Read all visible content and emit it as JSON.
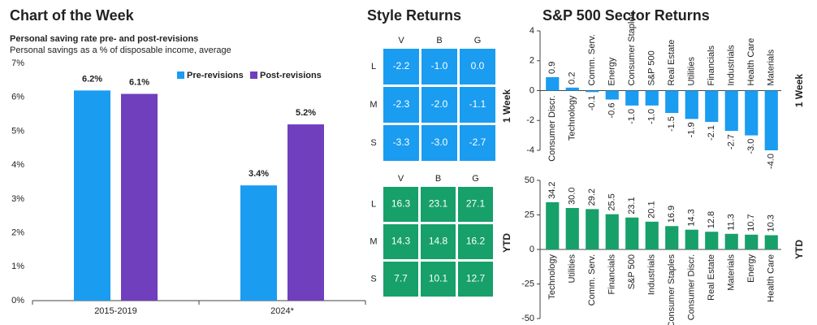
{
  "chart_data": [
    {
      "type": "bar",
      "title": "Chart of the Week",
      "subtitle": "Personal saving rate pre- and post-revisions",
      "ylabel": "Personal savings as a % of disposable income, average",
      "categories": [
        "2015-2019",
        "2024*"
      ],
      "series": [
        {
          "name": "Pre-revisions",
          "color": "#1a9cf0",
          "values": [
            6.2,
            3.4
          ],
          "value_labels": [
            "6.2%",
            "3.4%"
          ]
        },
        {
          "name": "Post-revisions",
          "color": "#6f3fbd",
          "values": [
            6.1,
            5.2
          ],
          "value_labels": [
            "6.1%",
            "5.2%"
          ]
        }
      ],
      "ylim": [
        0,
        7
      ],
      "yticks": [
        {
          "value": 0,
          "label": "0%"
        },
        {
          "value": 1,
          "label": "1%"
        },
        {
          "value": 2,
          "label": "2%"
        },
        {
          "value": 3,
          "label": "3%"
        },
        {
          "value": 4,
          "label": "4%"
        },
        {
          "value": 5,
          "label": "5%"
        },
        {
          "value": 6,
          "label": "6%"
        },
        {
          "value": 7,
          "label": "7%"
        }
      ]
    },
    {
      "type": "heatmap",
      "title": "Style Returns",
      "label": "1 Week",
      "columns": [
        "V",
        "B",
        "G"
      ],
      "rows": [
        "L",
        "M",
        "S"
      ],
      "values": [
        [
          -2.2,
          -1.0,
          0.0
        ],
        [
          -2.3,
          -2.0,
          -1.1
        ],
        [
          -3.3,
          -3.0,
          -2.7
        ]
      ],
      "value_labels": [
        [
          "-2.2",
          "-1.0",
          "0.0"
        ],
        [
          "-2.3",
          "-2.0",
          "-1.1"
        ],
        [
          "-3.3",
          "-3.0",
          "-2.7"
        ]
      ],
      "color": "#1a9cf0"
    },
    {
      "type": "heatmap",
      "label": "YTD",
      "columns": [
        "V",
        "B",
        "G"
      ],
      "rows": [
        "L",
        "M",
        "S"
      ],
      "values": [
        [
          16.3,
          23.1,
          27.1
        ],
        [
          14.3,
          14.8,
          16.2
        ],
        [
          7.7,
          10.1,
          12.7
        ]
      ],
      "color": "#17a06a"
    },
    {
      "type": "bar",
      "title": "S&P 500 Sector Returns",
      "ylabel": "1 Week",
      "categories": [
        "Consumer Discr.",
        "Technology",
        "Comm. Serv.",
        "Energy",
        "Consumer Staples",
        "S&P 500",
        "Real Estate",
        "Utilities",
        "Financials",
        "Industrials",
        "Health Care",
        "Materials"
      ],
      "values": [
        0.9,
        0.2,
        -0.1,
        -0.6,
        -1.0,
        -1.0,
        -1.5,
        -1.9,
        -2.1,
        -2.7,
        -3.0,
        -4.0
      ],
      "value_labels": [
        "0.9",
        "0.2",
        "-0.1",
        "-0.6",
        "-1.0",
        "-1.0",
        "-1.5",
        "-1.9",
        "-2.1",
        "-2.7",
        "-3.0",
        "-4.0"
      ],
      "color": "#1a9cf0",
      "ylim": [
        -4,
        4
      ],
      "yticks": [
        -4,
        -2,
        0,
        2,
        4
      ]
    },
    {
      "type": "bar",
      "ylabel": "YTD",
      "categories": [
        "Technology",
        "Utilities",
        "Comm. Serv.",
        "Financials",
        "S&P 500",
        "Industrials",
        "Consumer Staples",
        "Consumer Discr.",
        "Real Estate",
        "Materials",
        "Energy",
        "Health Care"
      ],
      "values": [
        34.2,
        30.0,
        29.2,
        25.5,
        23.1,
        20.1,
        16.9,
        14.3,
        12.8,
        11.3,
        10.7,
        10.3
      ],
      "value_labels": [
        "34.2",
        "30.0",
        "29.2",
        "25.5",
        "23.1",
        "20.1",
        "16.9",
        "14.3",
        "12.8",
        "11.3",
        "10.7",
        "10.3"
      ],
      "color": "#17a06a",
      "ylim": [
        -50,
        50
      ],
      "yticks": [
        -50,
        -25,
        0,
        25,
        50
      ]
    }
  ]
}
